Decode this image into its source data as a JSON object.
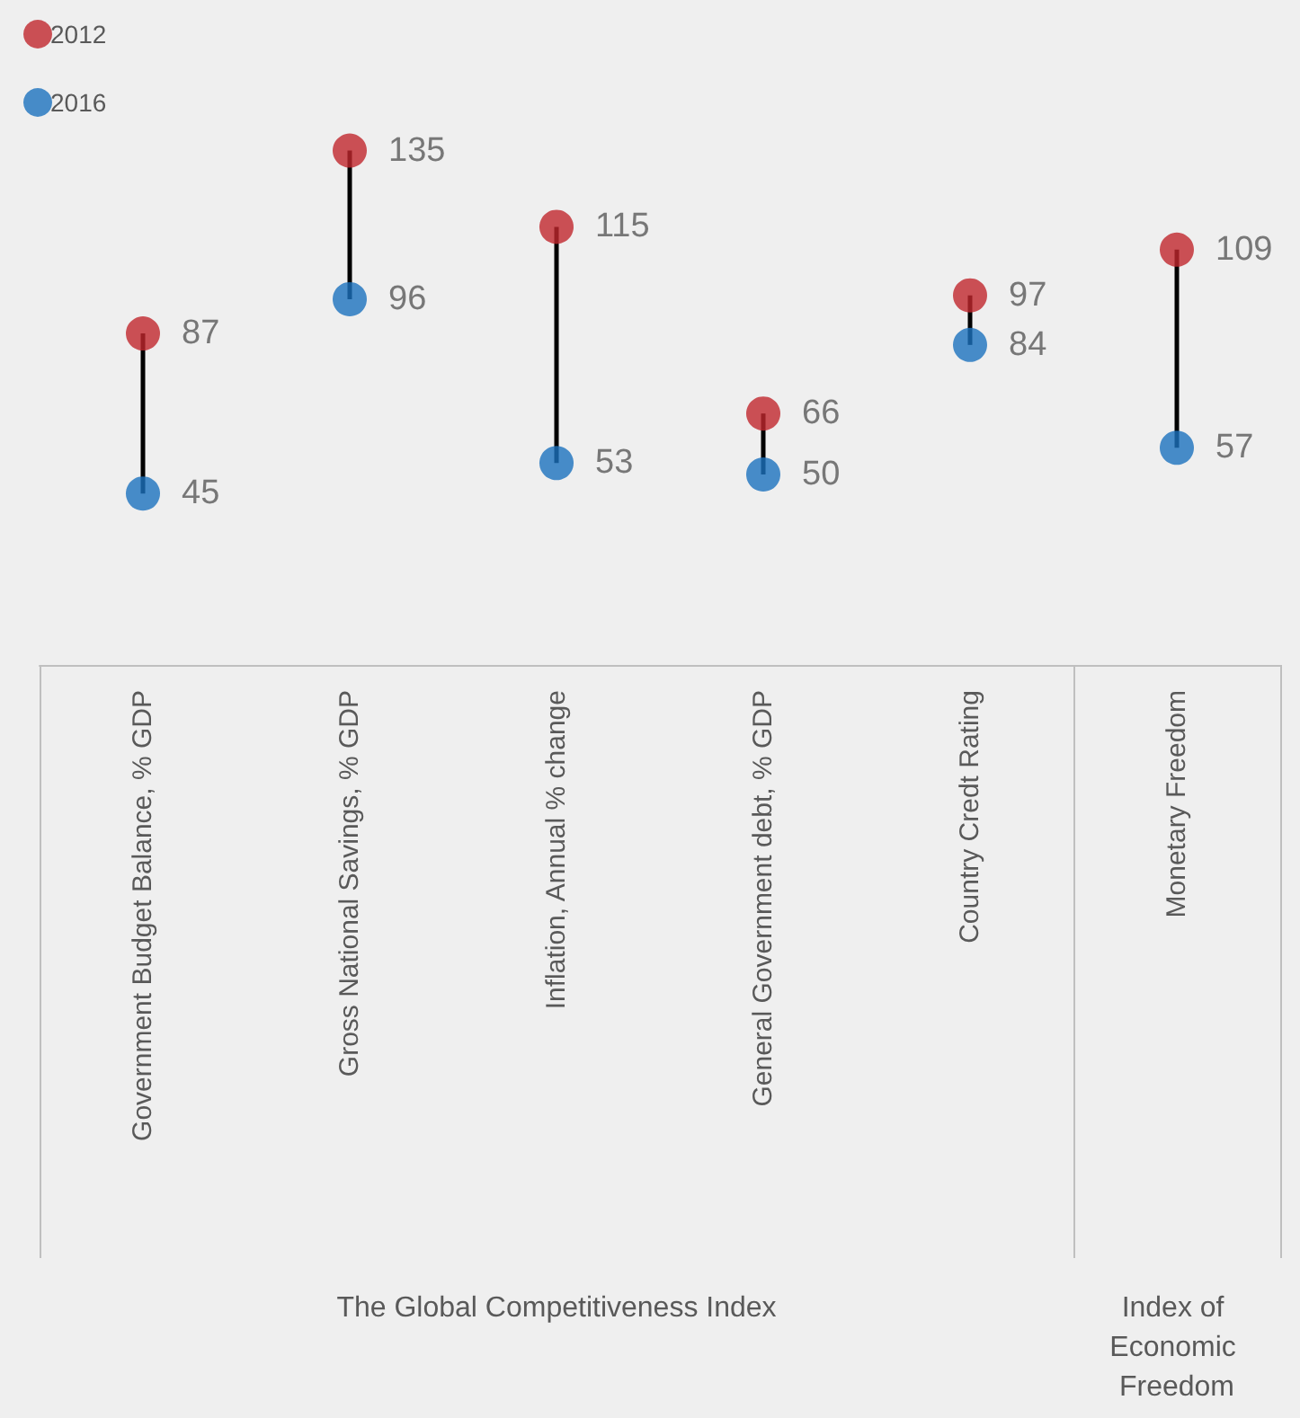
{
  "chart_data": {
    "type": "scatter",
    "categories": [
      "Government Budget Balance, % GDP",
      "Gross National Savings, % GDP",
      "Inflation, Annual % change",
      "General Government debt, % GDP",
      "Country Credt Rating",
      "Monetary Freedom"
    ],
    "series": [
      {
        "name": "2012",
        "color": "#c1272d",
        "values": [
          87,
          135,
          115,
          66,
          97,
          109
        ]
      },
      {
        "name": "2016",
        "color": "#1b72be",
        "values": [
          45,
          96,
          53,
          50,
          84,
          57
        ]
      }
    ],
    "data_labels": true,
    "legend": "top left",
    "marker": "circle",
    "grid": false,
    "tick_labels": "x",
    "annotations": [
      "The Global Competitiveness Index",
      "Index of Economic Freedom"
    ]
  }
}
